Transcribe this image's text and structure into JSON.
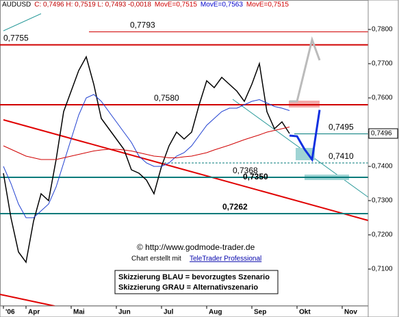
{
  "chart_data": {
    "type": "line",
    "header": [
      {
        "text": "AUDUSD",
        "color": "#000000"
      },
      {
        "text": "C: 0,7496 H: 0,7519 L: 0,7493 -0,0018",
        "color": "#c00000"
      },
      {
        "text": "MovE=0,7515",
        "color": "#d00000"
      },
      {
        "text": "MovE=0,7563",
        "color": "#0000cc"
      },
      {
        "text": "MovE=0,7515",
        "color": "#d00000"
      }
    ],
    "categories": [
      "'06",
      null,
      null,
      "Apr",
      null,
      null,
      null,
      null,
      null,
      "Mai",
      null,
      null,
      null,
      null,
      null,
      "Jun",
      null,
      null,
      null,
      null,
      null,
      "Jul",
      null,
      null,
      null,
      null,
      null,
      "Aug",
      null,
      null,
      null,
      null,
      null,
      "Sep",
      null,
      null,
      null,
      null,
      null,
      "Okt",
      null,
      null,
      null,
      null,
      null,
      "Nov",
      null,
      null,
      null
    ],
    "series": [
      {
        "color": "#000000",
        "values": [
          0.738,
          0.725,
          0.715,
          0.712,
          0.724,
          0.732,
          0.73,
          0.742,
          0.756,
          0.762,
          0.768,
          0.772,
          0.764,
          0.754,
          0.751,
          0.748,
          0.745,
          0.739,
          0.738,
          0.736,
          0.732,
          0.74,
          0.746,
          0.75,
          0.748,
          0.75,
          0.758,
          0.765,
          0.763,
          0.766,
          0.764,
          0.762,
          0.759,
          0.764,
          0.77,
          0.756,
          0.751,
          0.753,
          0.7496,
          null,
          null,
          null,
          null,
          null,
          null,
          null,
          null,
          null,
          null
        ]
      },
      {
        "color": "#1f3fd0",
        "values": [
          0.74,
          0.735,
          0.729,
          0.725,
          0.725,
          0.727,
          0.729,
          0.734,
          0.741,
          0.748,
          0.755,
          0.76,
          0.761,
          0.759,
          0.756,
          0.753,
          0.75,
          0.747,
          0.743,
          0.741,
          0.74,
          0.74,
          0.741,
          0.743,
          0.744,
          0.746,
          0.749,
          0.752,
          0.754,
          0.756,
          0.757,
          0.757,
          0.758,
          0.759,
          0.7595,
          0.7585,
          0.7575,
          0.757,
          0.7563,
          null,
          null,
          null,
          null,
          null,
          null,
          null,
          null,
          null,
          null
        ]
      },
      {
        "color": "#d00000",
        "values": [
          0.746,
          0.745,
          0.744,
          0.743,
          0.7425,
          0.742,
          0.742,
          0.742,
          0.7425,
          0.743,
          0.7435,
          0.744,
          0.7445,
          0.7448,
          0.745,
          0.745,
          0.7448,
          0.7445,
          0.744,
          0.7435,
          0.743,
          0.7428,
          0.7425,
          0.7425,
          0.7428,
          0.743,
          0.7435,
          0.744,
          0.7448,
          0.7455,
          0.7462,
          0.747,
          0.7478,
          0.7485,
          0.7492,
          0.75,
          0.7505,
          0.751,
          0.7515,
          null,
          null,
          null,
          null,
          null,
          null,
          null,
          null,
          null,
          null
        ]
      },
      {
        "color": "#1030e0",
        "values": [
          null,
          null,
          null,
          null,
          null,
          null,
          null,
          null,
          null,
          null,
          null,
          null,
          null,
          null,
          null,
          null,
          null,
          null,
          null,
          null,
          null,
          null,
          null,
          null,
          null,
          null,
          null,
          null,
          null,
          null,
          null,
          null,
          null,
          null,
          null,
          null,
          null,
          null,
          0.749,
          0.7488,
          0.745,
          0.742,
          0.7565,
          null,
          null,
          null,
          null,
          null,
          null
        ]
      },
      {
        "color": "#bbbbbb",
        "values": [
          null,
          null,
          null,
          null,
          null,
          null,
          null,
          null,
          null,
          null,
          null,
          null,
          null,
          null,
          null,
          null,
          null,
          null,
          null,
          null,
          null,
          null,
          null,
          null,
          null,
          null,
          null,
          null,
          null,
          null,
          null,
          null,
          null,
          null,
          null,
          null,
          null,
          null,
          0.759,
          0.759,
          0.768,
          0.777,
          0.771,
          null,
          null,
          null,
          null,
          null,
          null
        ]
      }
    ],
    "levels": [
      {
        "value": 0.7793,
        "label": "0,7793",
        "color": "#d00000",
        "style": "thin"
      },
      {
        "value": 0.7755,
        "label": "0,7755",
        "color": "#d00000",
        "style": "thick"
      },
      {
        "value": 0.758,
        "label": "0,7580",
        "color": "#d00000",
        "style": "thick"
      },
      {
        "value": 0.7495,
        "label": "0,7495",
        "color": "#007a7a",
        "style": "thin"
      },
      {
        "value": 0.741,
        "label": "0,7410",
        "color": "#007a7a",
        "style": "dashed"
      },
      {
        "value": 0.7368,
        "label": "0,7368",
        "color": "#007a7a",
        "style": "thick"
      },
      {
        "value": 0.735,
        "label": "0,7350",
        "color": "#000000",
        "style": "bold"
      },
      {
        "value": 0.7262,
        "label": "0,7262",
        "color": "#007a7a",
        "style": "thickbold"
      }
    ],
    "last": {
      "value": 0.7496,
      "label": "0,7496"
    },
    "ylim": [
      0.6992,
      0.7886
    ],
    "yticks": [
      {
        "value": 0.71,
        "label": "0,7100"
      },
      {
        "value": 0.72,
        "label": "0,7200"
      },
      {
        "value": 0.73,
        "label": "0,7300"
      },
      {
        "value": 0.74,
        "label": "0,7400"
      },
      {
        "value": 0.75,
        "label": "0,7500"
      },
      {
        "value": 0.76,
        "label": "0,7600"
      },
      {
        "value": 0.77,
        "label": "0,7700"
      },
      {
        "value": 0.78,
        "label": "0,7800"
      }
    ],
    "annotations": {
      "copyright": "© http://www.godmode-trader.de",
      "credit_prefix": "Chart erstellt mit",
      "credit_link": "TeleTrader Professional",
      "legend_blue": "Skizzierung BLAU = bevorzugtes Szenario",
      "legend_gray": "Skizzierung GRAU = Alternativszenario"
    }
  }
}
